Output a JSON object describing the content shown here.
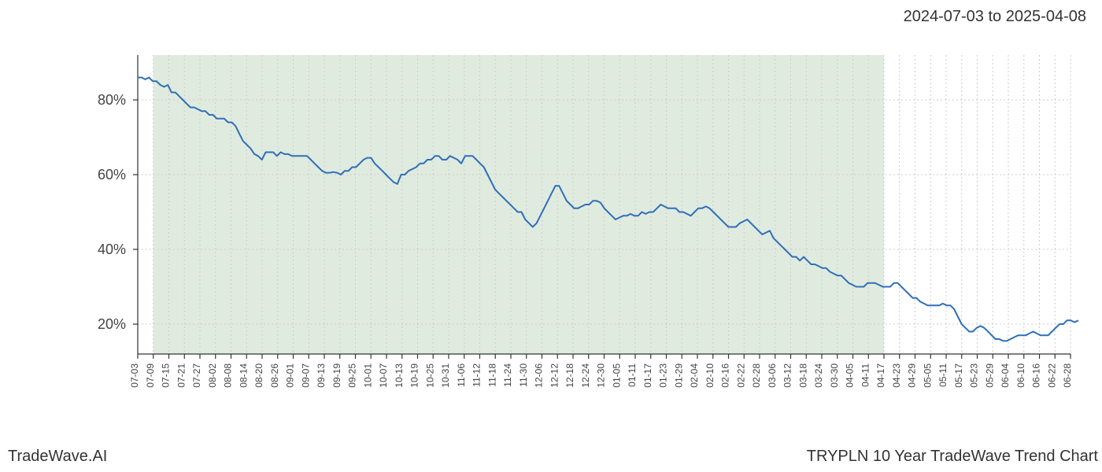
{
  "date_range_label": "2024-07-03 to 2025-04-08",
  "footer_left": "TradeWave.AI",
  "footer_right": "TRYPLN 10 Year TradeWave Trend Chart",
  "chart": {
    "type": "line",
    "background_color": "#ffffff",
    "grid_color": "#cccccc",
    "axis_color": "#333333",
    "line_color": "#2f6fb8",
    "line_width": 2,
    "shaded_region": {
      "color": "#dbe8d9",
      "opacity": 0.85,
      "start_index": 1,
      "end_index": 48
    },
    "ylim": [
      12,
      92
    ],
    "yticks": [
      20,
      40,
      60,
      80
    ],
    "ytick_labels": [
      "20%",
      "40%",
      "60%",
      "80%"
    ],
    "axis_label_fontsize": 18,
    "xtick_label_fontsize": 12,
    "xtick_rotation": -90,
    "xticks": [
      "07-03",
      "07-09",
      "07-15",
      "07-21",
      "07-27",
      "08-02",
      "08-08",
      "08-14",
      "08-20",
      "08-26",
      "09-01",
      "09-07",
      "09-13",
      "09-19",
      "09-25",
      "10-01",
      "10-07",
      "10-13",
      "10-19",
      "10-25",
      "10-31",
      "11-06",
      "11-12",
      "11-18",
      "11-24",
      "11-30",
      "12-06",
      "12-12",
      "12-18",
      "12-24",
      "12-30",
      "01-05",
      "01-11",
      "01-17",
      "01-23",
      "01-29",
      "02-04",
      "02-10",
      "02-16",
      "02-22",
      "02-28",
      "03-06",
      "03-12",
      "03-18",
      "03-24",
      "03-30",
      "04-05",
      "04-11",
      "04-17",
      "04-23",
      "04-29",
      "05-05",
      "05-11",
      "05-17",
      "05-23",
      "05-29",
      "06-04",
      "06-10",
      "06-16",
      "06-22",
      "06-28"
    ],
    "data_points": [
      86,
      86,
      85.5,
      86,
      85,
      85,
      84,
      83.5,
      84,
      82,
      82,
      81,
      80,
      79,
      78,
      78,
      77.5,
      77,
      77,
      76,
      76,
      75,
      75,
      75,
      74,
      74,
      73,
      71,
      69,
      68,
      67,
      65.5,
      65,
      64,
      66,
      66,
      66,
      65,
      66,
      65.5,
      65.5,
      65,
      65,
      65,
      65,
      65,
      64,
      63,
      62,
      61,
      60.5,
      60.5,
      60.7,
      60.5,
      60,
      61,
      61,
      62,
      62,
      63,
      64,
      64.5,
      64.5,
      63,
      62,
      61,
      60,
      59,
      58,
      57.5,
      60,
      60,
      61,
      61.5,
      62,
      63,
      63,
      64,
      64,
      65,
      65,
      64,
      64,
      65,
      64.5,
      64,
      63,
      65,
      65,
      65,
      64,
      63,
      62,
      60,
      58,
      56,
      55,
      54,
      53,
      52,
      51,
      50,
      50,
      48,
      47,
      46,
      47,
      49,
      51,
      53,
      55,
      57,
      57,
      55,
      53,
      52,
      51,
      51,
      51.5,
      52,
      52,
      53,
      53,
      52.5,
      51,
      50,
      49,
      48,
      48.5,
      49,
      49,
      49.5,
      49,
      49,
      50,
      49.5,
      50,
      50,
      51,
      52,
      51.5,
      51,
      51,
      51,
      50,
      50,
      49.5,
      49,
      50,
      51,
      51,
      51.5,
      51,
      50,
      49,
      48,
      47,
      46,
      46,
      46,
      47,
      47.5,
      48,
      47,
      46,
      45,
      44,
      44.5,
      45,
      43,
      42,
      41,
      40,
      39,
      38,
      38,
      37,
      38,
      37,
      36,
      36,
      35.5,
      35,
      35,
      34,
      33.5,
      33,
      33,
      32,
      31,
      30.5,
      30,
      30,
      30,
      31,
      31,
      31,
      30.5,
      30,
      30,
      30,
      31,
      31,
      30,
      29,
      28,
      27,
      27,
      26,
      25.5,
      25,
      25,
      25,
      25,
      25.5,
      25,
      25,
      24,
      22,
      20,
      19,
      18,
      18,
      19,
      19.5,
      19,
      18,
      17,
      16,
      16,
      15.5,
      15.5,
      16,
      16.5,
      17,
      17,
      17,
      17.5,
      18,
      17.5,
      17,
      17,
      17,
      18,
      19,
      20,
      20,
      21,
      21,
      20.5,
      21
    ]
  }
}
